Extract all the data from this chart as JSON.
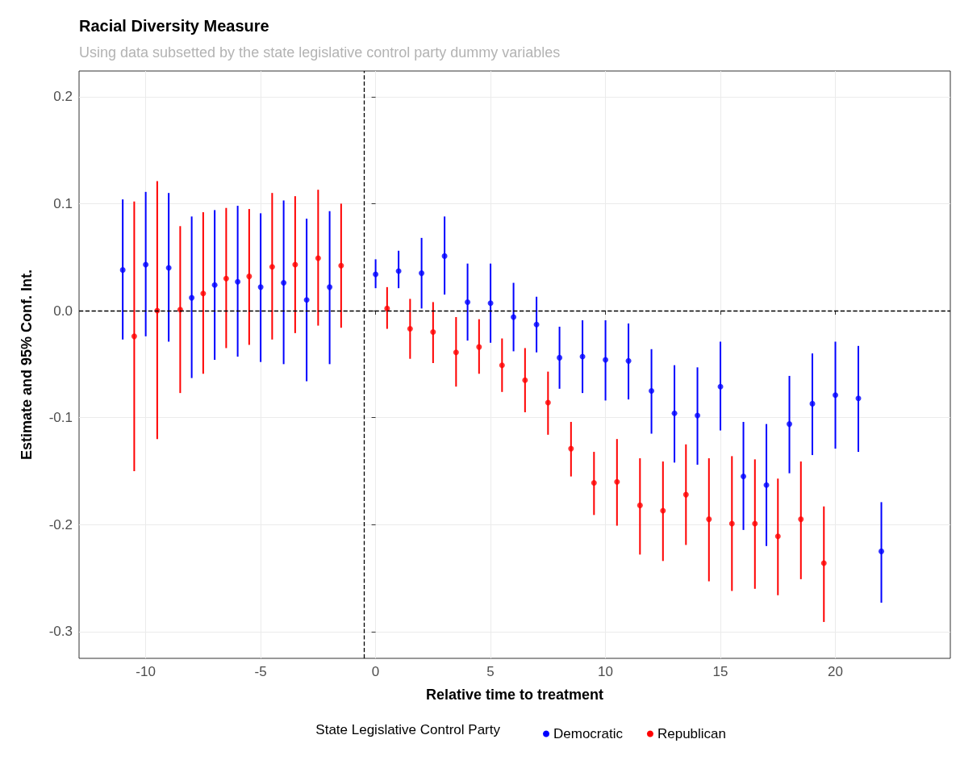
{
  "chart_data": {
    "type": "scatter",
    "title": "Racial Diversity Measure",
    "subtitle": "Using data subsetted by the state legislative control party dummy variables",
    "xlabel": "Relative time to treatment",
    "ylabel": "Estimate and 95% Conf. Int.",
    "legend_title": "State Legislative Control Party",
    "legend": "bottom",
    "grid": true,
    "marker": "circle",
    "xlim": [
      -12.9,
      25
    ],
    "xticks": [
      -10,
      -5,
      0,
      5,
      10,
      15,
      20
    ],
    "ylim": [
      -0.325,
      0.224
    ],
    "yticks": [
      -0.3,
      -0.2,
      -0.1,
      {
        "value": 0,
        "label": "0.0"
      },
      0.1,
      0.2
    ],
    "ref_lines": [
      {
        "axis": "x",
        "value": -0.5,
        "color": "#000000",
        "line_style": "dashed"
      },
      {
        "axis": "y",
        "value": 0,
        "color": "#000000",
        "line_style": "dashed"
      }
    ],
    "series": [
      {
        "name": "Democratic",
        "color": "#0000ff",
        "x": [
          -11,
          -10,
          -9,
          -8,
          -7,
          -6,
          -5,
          -4,
          -3,
          -2,
          0,
          1,
          2,
          3,
          4,
          5,
          6,
          7,
          8,
          9,
          10,
          11,
          12,
          13,
          14,
          15,
          16,
          17,
          18,
          19,
          20,
          21,
          22
        ],
        "values": [
          0.038,
          0.043,
          0.04,
          0.012,
          0.024,
          0.027,
          0.022,
          0.026,
          0.01,
          0.022,
          0.034,
          0.037,
          0.035,
          0.051,
          0.008,
          0.007,
          -0.006,
          -0.013,
          -0.044,
          -0.043,
          -0.046,
          -0.047,
          -0.075,
          -0.096,
          -0.098,
          -0.071,
          -0.155,
          -0.163,
          -0.106,
          -0.087,
          -0.079,
          -0.082,
          -0.225
        ],
        "errors": [
          [
            -0.027,
            0.104
          ],
          [
            -0.024,
            0.111
          ],
          [
            -0.029,
            0.11
          ],
          [
            -0.063,
            0.088
          ],
          [
            -0.046,
            0.094
          ],
          [
            -0.043,
            0.098
          ],
          [
            -0.048,
            0.091
          ],
          [
            -0.05,
            0.103
          ],
          [
            -0.066,
            0.086
          ],
          [
            -0.05,
            0.093
          ],
          [
            0.021,
            0.048
          ],
          [
            0.021,
            0.056
          ],
          [
            0.002,
            0.068
          ],
          [
            0.015,
            0.088
          ],
          [
            -0.028,
            0.044
          ],
          [
            -0.03,
            0.044
          ],
          [
            -0.038,
            0.026
          ],
          [
            -0.039,
            0.013
          ],
          [
            -0.073,
            -0.015
          ],
          [
            -0.077,
            -0.009
          ],
          [
            -0.084,
            -0.009
          ],
          [
            -0.083,
            -0.012
          ],
          [
            -0.115,
            -0.036
          ],
          [
            -0.142,
            -0.051
          ],
          [
            -0.144,
            -0.053
          ],
          [
            -0.112,
            -0.029
          ],
          [
            -0.205,
            -0.104
          ],
          [
            -0.22,
            -0.106
          ],
          [
            -0.152,
            -0.061
          ],
          [
            -0.135,
            -0.04
          ],
          [
            -0.129,
            -0.029
          ],
          [
            -0.132,
            -0.033
          ],
          [
            -0.273,
            -0.179
          ]
        ]
      },
      {
        "name": "Republican",
        "color": "#ff0000",
        "x": [
          -10.5,
          -9.5,
          -8.5,
          -7.5,
          -6.5,
          -5.5,
          -4.5,
          -3.5,
          -2.5,
          -1.5,
          0.5,
          1.5,
          2.5,
          3.5,
          4.5,
          5.5,
          6.5,
          7.5,
          8.5,
          9.5,
          10.5,
          11.5,
          12.5,
          13.5,
          14.5,
          15.5,
          16.5,
          17.5,
          18.5,
          19.5
        ],
        "values": [
          -0.024,
          0.0,
          0.001,
          0.016,
          0.03,
          0.032,
          0.041,
          0.043,
          0.049,
          0.042,
          0.002,
          -0.017,
          -0.02,
          -0.039,
          -0.034,
          -0.051,
          -0.065,
          -0.086,
          -0.129,
          -0.161,
          -0.16,
          -0.182,
          -0.187,
          -0.172,
          -0.195,
          -0.199,
          -0.199,
          -0.211,
          -0.195,
          -0.236
        ],
        "errors": [
          [
            -0.15,
            0.102
          ],
          [
            -0.12,
            0.121
          ],
          [
            -0.077,
            0.079
          ],
          [
            -0.059,
            0.092
          ],
          [
            -0.035,
            0.096
          ],
          [
            -0.032,
            0.095
          ],
          [
            -0.027,
            0.11
          ],
          [
            -0.021,
            0.107
          ],
          [
            -0.014,
            0.113
          ],
          [
            -0.016,
            0.1
          ],
          [
            -0.017,
            0.022
          ],
          [
            -0.045,
            0.011
          ],
          [
            -0.049,
            0.008
          ],
          [
            -0.071,
            -0.006
          ],
          [
            -0.059,
            -0.008
          ],
          [
            -0.076,
            -0.026
          ],
          [
            -0.095,
            -0.035
          ],
          [
            -0.116,
            -0.057
          ],
          [
            -0.155,
            -0.104
          ],
          [
            -0.191,
            -0.132
          ],
          [
            -0.201,
            -0.12
          ],
          [
            -0.228,
            -0.138
          ],
          [
            -0.234,
            -0.141
          ],
          [
            -0.219,
            -0.125
          ],
          [
            -0.253,
            -0.138
          ],
          [
            -0.262,
            -0.136
          ],
          [
            -0.26,
            -0.139
          ],
          [
            -0.266,
            -0.157
          ],
          [
            -0.251,
            -0.141
          ],
          [
            -0.291,
            -0.183
          ]
        ]
      }
    ]
  }
}
